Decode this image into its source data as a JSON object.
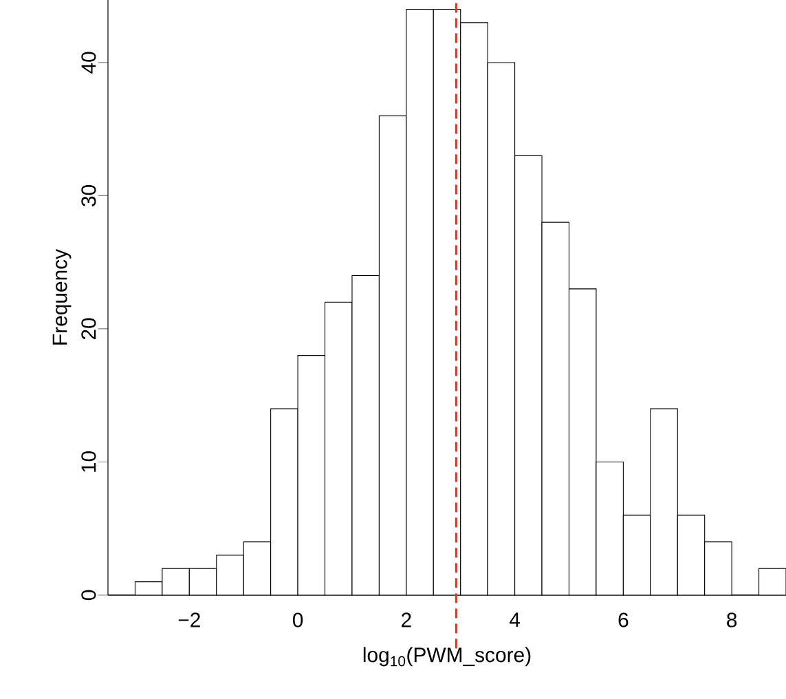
{
  "chart_data": {
    "type": "histogram",
    "xlabel": "log$_{10}$(PWM_score)",
    "ylabel": "Frequency",
    "bins": [
      -3.5,
      -3,
      -2.5,
      -2,
      -1.5,
      -1,
      -0.5,
      0,
      0.5,
      1,
      1.5,
      2,
      2.5,
      3,
      3.5,
      4,
      4.5,
      5,
      5.5,
      6,
      6.5,
      7,
      7.5,
      8,
      8.5,
      9
    ],
    "values": [
      0,
      1,
      2,
      2,
      3,
      4,
      14,
      18,
      22,
      24,
      36,
      44,
      44,
      43,
      40,
      33,
      28,
      23,
      10,
      6,
      14,
      6,
      4,
      0,
      2
    ],
    "xlim": [
      -3.5,
      9
    ],
    "ylim": [
      0,
      44.7
    ],
    "xticks": [
      {
        "value": -2,
        "label": "−2"
      },
      0,
      2,
      4,
      6,
      8
    ],
    "yticks": [
      0,
      10,
      20,
      30,
      40
    ],
    "ref_lines": [
      {
        "axis": "x",
        "value": 2.92,
        "color": "#e8341c",
        "line_style": "dashed"
      }
    ],
    "grid": false
  }
}
